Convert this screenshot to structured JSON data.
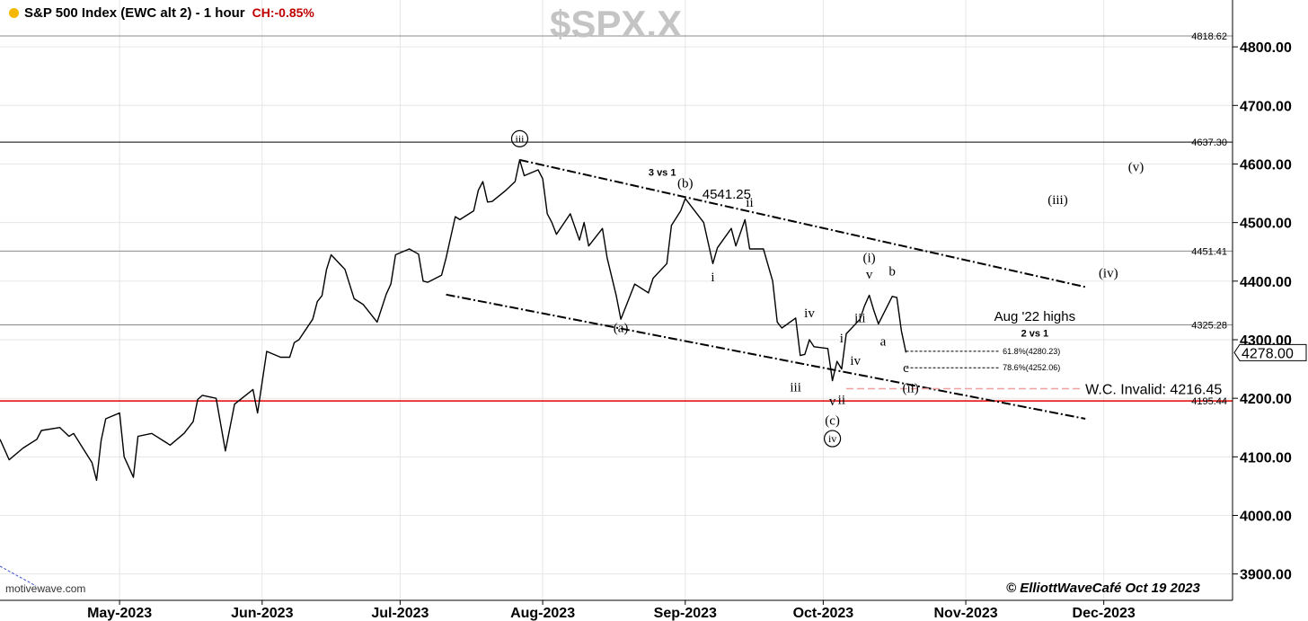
{
  "header": {
    "title": "S&P 500 Index (EWC alt 2) - 1 hour",
    "change": "CH:-0.85%",
    "symbol": "$SPX.X"
  },
  "footer": {
    "watermark": "motivewave.com",
    "copyright": "© ElliottWaveCafé Oct 19 2023"
  },
  "colors": {
    "price": "#000000",
    "grid": "#e6e6e6",
    "invalidation_line": "#e00000",
    "invalid_dashed": "#f2a0a0",
    "header_dot": "#f5b800",
    "change_text": "#c00000"
  },
  "chart_data": {
    "type": "line",
    "title": "S&P 500 Index (EWC alt 2) - 1 hour",
    "symbol": "$SPX.X",
    "y_axis": {
      "ticks": [
        3900,
        4000,
        4100,
        4200,
        4300,
        4400,
        4500,
        4600,
        4700,
        4800
      ],
      "tick_labels": [
        "3900.00",
        "4000.00",
        "4100.00",
        "4200.00",
        "4300.00",
        "4400.00",
        "4500.00",
        "4600.00",
        "4700.00",
        "4800.00"
      ],
      "range": [
        3855,
        4880
      ],
      "side": "right"
    },
    "x_axis": {
      "labels": [
        "May-2023",
        "Jun-2023",
        "Jul-2023",
        "Aug-2023",
        "Sep-2023",
        "Oct-2023",
        "Nov-2023",
        "Dec-2023"
      ],
      "dates": [
        "2023-05-01",
        "2023-06-01",
        "2023-07-01",
        "2023-08-01",
        "2023-09-01",
        "2023-10-01",
        "2023-11-01",
        "2023-12-01"
      ],
      "range": [
        "2023-04-05",
        "2023-12-29"
      ]
    },
    "grid": true,
    "series": [
      {
        "values": [
          {
            "x": "2023-04-05",
            "y": 4130
          },
          {
            "x": "2023-04-07",
            "y": 4095
          },
          {
            "x": "2023-04-10",
            "y": 4115
          },
          {
            "x": "2023-04-13",
            "y": 4130
          },
          {
            "x": "2023-04-14",
            "y": 4145
          },
          {
            "x": "2023-04-18",
            "y": 4150
          },
          {
            "x": "2023-04-20",
            "y": 4135
          },
          {
            "x": "2023-04-21",
            "y": 4140
          },
          {
            "x": "2023-04-25",
            "y": 4090
          },
          {
            "x": "2023-04-26",
            "y": 4060
          },
          {
            "x": "2023-04-27",
            "y": 4128
          },
          {
            "x": "2023-04-28",
            "y": 4165
          },
          {
            "x": "2023-05-01",
            "y": 4175
          },
          {
            "x": "2023-05-02",
            "y": 4100
          },
          {
            "x": "2023-05-04",
            "y": 4065
          },
          {
            "x": "2023-05-05",
            "y": 4135
          },
          {
            "x": "2023-05-08",
            "y": 4140
          },
          {
            "x": "2023-05-11",
            "y": 4125
          },
          {
            "x": "2023-05-12",
            "y": 4120
          },
          {
            "x": "2023-05-15",
            "y": 4140
          },
          {
            "x": "2023-05-17",
            "y": 4160
          },
          {
            "x": "2023-05-18",
            "y": 4198
          },
          {
            "x": "2023-05-19",
            "y": 4205
          },
          {
            "x": "2023-05-22",
            "y": 4200
          },
          {
            "x": "2023-05-24",
            "y": 4110
          },
          {
            "x": "2023-05-25",
            "y": 4150
          },
          {
            "x": "2023-05-26",
            "y": 4190
          },
          {
            "x": "2023-05-30",
            "y": 4215
          },
          {
            "x": "2023-05-31",
            "y": 4175
          },
          {
            "x": "2023-06-02",
            "y": 4280
          },
          {
            "x": "2023-06-05",
            "y": 4270
          },
          {
            "x": "2023-06-07",
            "y": 4270
          },
          {
            "x": "2023-06-08",
            "y": 4295
          },
          {
            "x": "2023-06-09",
            "y": 4300
          },
          {
            "x": "2023-06-12",
            "y": 4335
          },
          {
            "x": "2023-06-13",
            "y": 4365
          },
          {
            "x": "2023-06-14",
            "y": 4375
          },
          {
            "x": "2023-06-15",
            "y": 4420
          },
          {
            "x": "2023-06-16",
            "y": 4445
          },
          {
            "x": "2023-06-19",
            "y": 4420
          },
          {
            "x": "2023-06-21",
            "y": 4370
          },
          {
            "x": "2023-06-23",
            "y": 4360
          },
          {
            "x": "2023-06-26",
            "y": 4330
          },
          {
            "x": "2023-06-28",
            "y": 4378
          },
          {
            "x": "2023-06-29",
            "y": 4395
          },
          {
            "x": "2023-06-30",
            "y": 4445
          },
          {
            "x": "2023-07-03",
            "y": 4455
          },
          {
            "x": "2023-07-05",
            "y": 4446
          },
          {
            "x": "2023-07-06",
            "y": 4400
          },
          {
            "x": "2023-07-07",
            "y": 4398
          },
          {
            "x": "2023-07-10",
            "y": 4410
          },
          {
            "x": "2023-07-11",
            "y": 4440
          },
          {
            "x": "2023-07-12",
            "y": 4475
          },
          {
            "x": "2023-07-13",
            "y": 4510
          },
          {
            "x": "2023-07-14",
            "y": 4505
          },
          {
            "x": "2023-07-17",
            "y": 4520
          },
          {
            "x": "2023-07-18",
            "y": 4555
          },
          {
            "x": "2023-07-19",
            "y": 4570
          },
          {
            "x": "2023-07-20",
            "y": 4535
          },
          {
            "x": "2023-07-21",
            "y": 4536
          },
          {
            "x": "2023-07-24",
            "y": 4555
          },
          {
            "x": "2023-07-26",
            "y": 4570
          },
          {
            "x": "2023-07-27",
            "y": 4607
          },
          {
            "x": "2023-07-28",
            "y": 4580
          },
          {
            "x": "2023-07-31",
            "y": 4590
          },
          {
            "x": "2023-08-01",
            "y": 4575
          },
          {
            "x": "2023-08-02",
            "y": 4515
          },
          {
            "x": "2023-08-03",
            "y": 4500
          },
          {
            "x": "2023-08-04",
            "y": 4480
          },
          {
            "x": "2023-08-07",
            "y": 4515
          },
          {
            "x": "2023-08-09",
            "y": 4470
          },
          {
            "x": "2023-08-10",
            "y": 4500
          },
          {
            "x": "2023-08-11",
            "y": 4460
          },
          {
            "x": "2023-08-14",
            "y": 4490
          },
          {
            "x": "2023-08-15",
            "y": 4440
          },
          {
            "x": "2023-08-17",
            "y": 4375
          },
          {
            "x": "2023-08-18",
            "y": 4335
          },
          {
            "x": "2023-08-21",
            "y": 4395
          },
          {
            "x": "2023-08-22",
            "y": 4390
          },
          {
            "x": "2023-08-24",
            "y": 4380
          },
          {
            "x": "2023-08-25",
            "y": 4405
          },
          {
            "x": "2023-08-28",
            "y": 4430
          },
          {
            "x": "2023-08-29",
            "y": 4495
          },
          {
            "x": "2023-08-31",
            "y": 4520
          },
          {
            "x": "2023-09-01",
            "y": 4541
          },
          {
            "x": "2023-09-05",
            "y": 4500
          },
          {
            "x": "2023-09-06",
            "y": 4465
          },
          {
            "x": "2023-09-07",
            "y": 4430
          },
          {
            "x": "2023-09-08",
            "y": 4457
          },
          {
            "x": "2023-09-11",
            "y": 4490
          },
          {
            "x": "2023-09-12",
            "y": 4460
          },
          {
            "x": "2023-09-14",
            "y": 4505
          },
          {
            "x": "2023-09-15",
            "y": 4455
          },
          {
            "x": "2023-09-18",
            "y": 4455
          },
          {
            "x": "2023-09-20",
            "y": 4400
          },
          {
            "x": "2023-09-21",
            "y": 4330
          },
          {
            "x": "2023-09-22",
            "y": 4320
          },
          {
            "x": "2023-09-25",
            "y": 4337
          },
          {
            "x": "2023-09-26",
            "y": 4273
          },
          {
            "x": "2023-09-27",
            "y": 4275
          },
          {
            "x": "2023-09-28",
            "y": 4300
          },
          {
            "x": "2023-09-29",
            "y": 4288
          },
          {
            "x": "2023-10-02",
            "y": 4285
          },
          {
            "x": "2023-10-03",
            "y": 4230
          },
          {
            "x": "2023-10-04",
            "y": 4263
          },
          {
            "x": "2023-10-05",
            "y": 4250
          },
          {
            "x": "2023-10-06",
            "y": 4310
          },
          {
            "x": "2023-10-09",
            "y": 4335
          },
          {
            "x": "2023-10-10",
            "y": 4358
          },
          {
            "x": "2023-10-11",
            "y": 4376
          },
          {
            "x": "2023-10-12",
            "y": 4350
          },
          {
            "x": "2023-10-13",
            "y": 4327
          },
          {
            "x": "2023-10-16",
            "y": 4374
          },
          {
            "x": "2023-10-17",
            "y": 4372
          },
          {
            "x": "2023-10-18",
            "y": 4315
          },
          {
            "x": "2023-10-19",
            "y": 4278
          }
        ]
      }
    ],
    "horizontal_levels": [
      {
        "value": 4818.62,
        "label": "4818.62",
        "style": "solid-gray"
      },
      {
        "value": 4637.3,
        "label": "4637.30",
        "style": "solid-black"
      },
      {
        "value": 4451.41,
        "label": "4451.41",
        "style": "solid-gray"
      },
      {
        "value": 4325.28,
        "label": "4325.28",
        "style": "solid-gray"
      },
      {
        "value": 4195.44,
        "label": "4195.44",
        "style": "solid-red"
      }
    ],
    "current_price_label": "4278.00",
    "channel": {
      "upper": [
        {
          "x": "2023-07-27",
          "y": 4607
        },
        {
          "x": "2023-11-27",
          "y": 4390
        }
      ],
      "lower": [
        {
          "x": "2023-07-11",
          "y": 4377
        },
        {
          "x": "2023-11-27",
          "y": 4165
        }
      ]
    },
    "retracements": [
      {
        "label": "61.8%(4280.23)",
        "value": 4280.23,
        "from": "2023-10-19",
        "to": "2023-11-27"
      },
      {
        "label": "78.6%(4252.06)",
        "value": 4252.06,
        "from": "2023-10-19",
        "to": "2023-11-27"
      }
    ],
    "invalidation": {
      "label": "W.C. Invalid: 4216.45",
      "value": 4216.45,
      "from": "2023-10-06",
      "to": "2023-11-27"
    },
    "annotations": [
      {
        "text": "iii",
        "x": "2023-07-27",
        "y": 4637,
        "circled": true
      },
      {
        "text": "3 vs 1",
        "x": "2023-08-27",
        "y": 4580,
        "bold": true
      },
      {
        "text": "(b)",
        "x": "2023-09-01",
        "y": 4560
      },
      {
        "text": "4541.25",
        "x": "2023-09-10",
        "y": 4541
      },
      {
        "text": "ii",
        "x": "2023-09-15",
        "y": 4527
      },
      {
        "text": "i",
        "x": "2023-09-07",
        "y": 4400
      },
      {
        "text": "(a)",
        "x": "2023-08-18",
        "y": 4313
      },
      {
        "text": "(i)",
        "x": "2023-10-11",
        "y": 4433
      },
      {
        "text": "v",
        "x": "2023-10-11",
        "y": 4404
      },
      {
        "text": "b",
        "x": "2023-10-16",
        "y": 4410
      },
      {
        "text": "iv",
        "x": "2023-09-28",
        "y": 4338
      },
      {
        "text": "iii",
        "x": "2023-10-09",
        "y": 4330
      },
      {
        "text": "a",
        "x": "2023-10-14",
        "y": 4290
      },
      {
        "text": "i",
        "x": "2023-10-05",
        "y": 4295
      },
      {
        "text": "iv",
        "x": "2023-10-08",
        "y": 4257
      },
      {
        "text": "c",
        "x": "2023-10-19",
        "y": 4245
      },
      {
        "text": "(ii)",
        "x": "2023-10-20",
        "y": 4210
      },
      {
        "text": "iii",
        "x": "2023-09-25",
        "y": 4212
      },
      {
        "text": "v",
        "x": "2023-10-03",
        "y": 4188
      },
      {
        "text": "ii",
        "x": "2023-10-05",
        "y": 4190
      },
      {
        "text": "(c)",
        "x": "2023-10-03",
        "y": 4155
      },
      {
        "text": "iv",
        "x": "2023-10-03",
        "y": 4125,
        "circled": true
      },
      {
        "text": "Aug '22 highs",
        "x": "2023-11-16",
        "y": 4332
      },
      {
        "text": "2 vs 1",
        "x": "2023-11-16",
        "y": 4305,
        "bold": true
      },
      {
        "text": "(iii)",
        "x": "2023-11-21",
        "y": 4532
      },
      {
        "text": "(iv)",
        "x": "2023-12-02",
        "y": 4407
      },
      {
        "text": "(v)",
        "x": "2023-12-08",
        "y": 4588
      }
    ]
  }
}
